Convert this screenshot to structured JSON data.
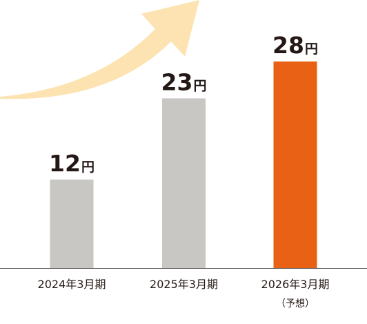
{
  "chart_data": {
    "type": "bar",
    "categories": [
      "2024年3月期",
      "2025年3月期",
      "2026年3月期"
    ],
    "category_notes": [
      "",
      "",
      "（予想）"
    ],
    "values": [
      12,
      23,
      28
    ],
    "unit": "円",
    "value_labels": [
      "12",
      "23",
      "28"
    ],
    "bar_colors": [
      "#c9c7c3",
      "#c9c7c3",
      "#e96115"
    ],
    "ylim": [
      0,
      31
    ],
    "title": "",
    "xlabel": "",
    "ylabel": "",
    "grid": false,
    "legend": "none",
    "trend_arrow": "up-right",
    "colors": {
      "arrow": "#fce3b1",
      "axis": "#595757",
      "text": "#231815"
    }
  }
}
